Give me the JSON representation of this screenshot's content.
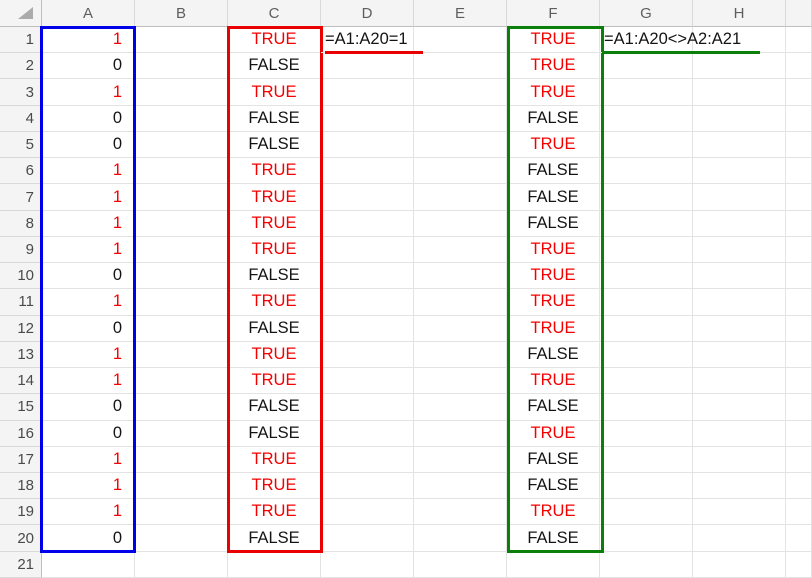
{
  "colors": {
    "red_text": "#F40000",
    "blue_box": "#0000E8",
    "red_box": "#E90000",
    "green_box": "#0A7F0A",
    "header_bg": "#F4F4F4",
    "header_text": "#5E5E5E",
    "row_header_text": "#4A4A4A",
    "gridline": "#E3E3E3",
    "header_border": "#BFBFBF",
    "cell_text": "#141414"
  },
  "sheet": {
    "column_headers": [
      "A",
      "B",
      "C",
      "D",
      "E",
      "F",
      "G",
      "H"
    ],
    "row_headers": [
      "1",
      "2",
      "3",
      "4",
      "5",
      "6",
      "7",
      "8",
      "9",
      "10",
      "11",
      "12",
      "13",
      "14",
      "15",
      "16",
      "17",
      "18",
      "19",
      "20",
      "21"
    ],
    "col_a_values": [
      "1",
      "0",
      "1",
      "0",
      "0",
      "1",
      "1",
      "1",
      "1",
      "0",
      "1",
      "0",
      "1",
      "1",
      "0",
      "0",
      "1",
      "1",
      "1",
      "0"
    ],
    "col_c_values": [
      "TRUE",
      "FALSE",
      "TRUE",
      "FALSE",
      "FALSE",
      "TRUE",
      "TRUE",
      "TRUE",
      "TRUE",
      "FALSE",
      "TRUE",
      "FALSE",
      "TRUE",
      "TRUE",
      "FALSE",
      "FALSE",
      "TRUE",
      "TRUE",
      "TRUE",
      "FALSE"
    ],
    "col_f_values": [
      "TRUE",
      "TRUE",
      "TRUE",
      "FALSE",
      "TRUE",
      "FALSE",
      "FALSE",
      "FALSE",
      "TRUE",
      "TRUE",
      "TRUE",
      "TRUE",
      "FALSE",
      "TRUE",
      "FALSE",
      "TRUE",
      "FALSE",
      "FALSE",
      "TRUE",
      "FALSE"
    ],
    "formula_d1": "=A1:A20=1",
    "formula_g1": "=A1:A20<>A2:A21"
  }
}
